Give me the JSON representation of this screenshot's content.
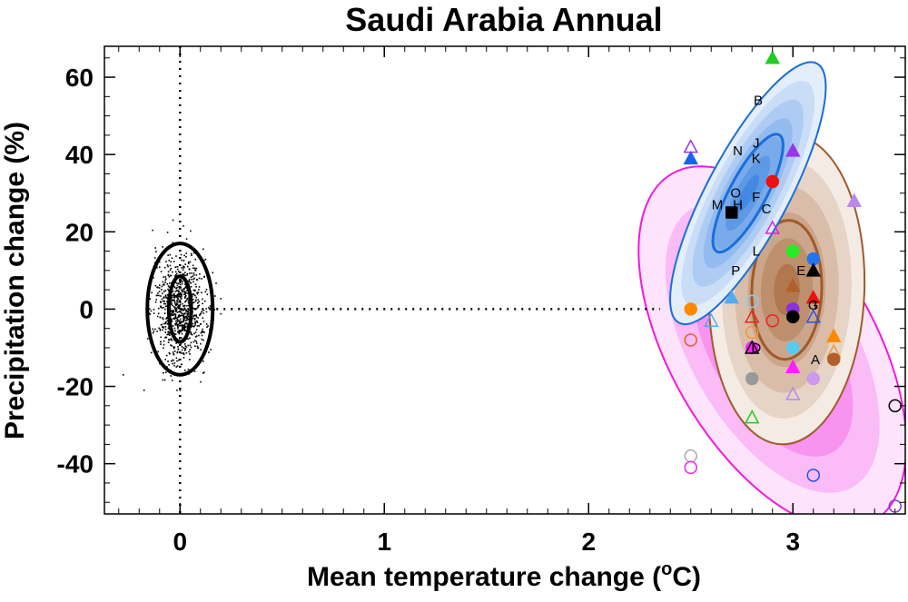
{
  "chart_data": {
    "type": "scatter",
    "title": "Saudi Arabia Annual",
    "xlabel": "Mean temperature change (",
    "xlabel_sup": "o",
    "xlabel_suffix": "C)",
    "ylabel": "Precipitation change (%)",
    "xlim": [
      -0.37,
      3.55
    ],
    "ylim": [
      -53,
      68
    ],
    "x_ticks": [
      0,
      1,
      2,
      3
    ],
    "y_ticks": [
      -40,
      -20,
      0,
      20,
      40,
      60
    ],
    "grid": false,
    "reference_lines": {
      "x": 0,
      "y": 0,
      "style": "dotted"
    },
    "natural_variability": {
      "center": [
        0.0,
        0.0
      ],
      "contours": [
        {
          "rx": 0.055,
          "ry": 8.5
        },
        {
          "rx": 0.16,
          "ry": 17
        }
      ],
      "scatter_extent": {
        "x": [
          -0.32,
          0.2
        ],
        "y": [
          -21,
          23
        ]
      },
      "scatter_count": 900,
      "color": "#000000"
    },
    "distributions": [
      {
        "name": "pink",
        "center": [
          2.9,
          -10
        ],
        "rx": 0.5,
        "ry": 52,
        "angle_deg": -30,
        "color": "#f019e0",
        "levels": 5
      },
      {
        "name": "brown",
        "center": [
          2.97,
          5
        ],
        "rx": 0.38,
        "ry": 40,
        "angle_deg": 2,
        "color": "#a05a28",
        "levels": 6
      },
      {
        "name": "blue",
        "center": [
          2.78,
          30
        ],
        "rx": 0.2,
        "ry": 38,
        "angle_deg": 28,
        "color": "#1a6edc",
        "levels": 7
      }
    ],
    "markers": [
      {
        "x": 2.9,
        "y": 65,
        "shape": "triangle",
        "filled": true,
        "color": "#22cc22"
      },
      {
        "x": 3.0,
        "y": 41,
        "shape": "triangle",
        "filled": true,
        "color": "#9933ee"
      },
      {
        "x": 2.9,
        "y": 33,
        "shape": "circle",
        "filled": true,
        "color": "#ee1111"
      },
      {
        "x": 2.5,
        "y": 39,
        "shape": "triangle",
        "filled": true,
        "color": "#1166ee"
      },
      {
        "x": 2.5,
        "y": 42,
        "shape": "triangle",
        "filled": false,
        "color": "#9933ee"
      },
      {
        "x": 3.3,
        "y": 28,
        "shape": "triangle",
        "filled": true,
        "color": "#bb88ee"
      },
      {
        "x": 2.7,
        "y": 25,
        "shape": "square",
        "filled": true,
        "color": "#000000"
      },
      {
        "x": 2.9,
        "y": 21,
        "shape": "triangle",
        "filled": false,
        "color": "#dd22dd"
      },
      {
        "x": 3.0,
        "y": 15,
        "shape": "circle",
        "filled": true,
        "color": "#22ee22"
      },
      {
        "x": 3.1,
        "y": 13,
        "shape": "circle",
        "filled": true,
        "color": "#2277ee"
      },
      {
        "x": 3.1,
        "y": 10,
        "shape": "triangle",
        "filled": true,
        "color": "#000000"
      },
      {
        "x": 3.0,
        "y": 6,
        "shape": "triangle",
        "filled": true,
        "color": "#b0602c"
      },
      {
        "x": 3.1,
        "y": 3,
        "shape": "triangle",
        "filled": true,
        "color": "#ee1111"
      },
      {
        "x": 2.7,
        "y": 3,
        "shape": "triangle",
        "filled": true,
        "color": "#55aaee"
      },
      {
        "x": 2.8,
        "y": 2,
        "shape": "circle",
        "filled": false,
        "color": "#88ccee"
      },
      {
        "x": 2.5,
        "y": 0,
        "shape": "circle",
        "filled": true,
        "color": "#ff8800"
      },
      {
        "x": 3.0,
        "y": 0,
        "shape": "circle",
        "filled": true,
        "color": "#8833dd"
      },
      {
        "x": 3.0,
        "y": -2,
        "shape": "circle",
        "filled": true,
        "color": "#000000"
      },
      {
        "x": 3.1,
        "y": -2,
        "shape": "triangle",
        "filled": false,
        "color": "#2255ee"
      },
      {
        "x": 2.8,
        "y": -2,
        "shape": "triangle",
        "filled": false,
        "color": "#ee2222"
      },
      {
        "x": 2.9,
        "y": -3,
        "shape": "circle",
        "filled": false,
        "color": "#ee2222"
      },
      {
        "x": 2.6,
        "y": -3,
        "shape": "triangle",
        "filled": false,
        "color": "#55aaee"
      },
      {
        "x": 2.8,
        "y": -6,
        "shape": "circle",
        "filled": false,
        "color": "#ee9933"
      },
      {
        "x": 2.5,
        "y": -8,
        "shape": "circle",
        "filled": false,
        "color": "#e06020"
      },
      {
        "x": 3.2,
        "y": -7,
        "shape": "triangle",
        "filled": true,
        "color": "#ff8800"
      },
      {
        "x": 2.8,
        "y": -10,
        "shape": "circle",
        "filled": true,
        "color": "#ff22ff"
      },
      {
        "x": 2.8,
        "y": -10,
        "shape": "triangle",
        "filled": false,
        "color": "#000000"
      },
      {
        "x": 3.0,
        "y": -10,
        "shape": "circle",
        "filled": true,
        "color": "#55ccee"
      },
      {
        "x": 3.2,
        "y": -11,
        "shape": "triangle",
        "filled": false,
        "color": "#ee9933"
      },
      {
        "x": 3.2,
        "y": -13,
        "shape": "circle",
        "filled": true,
        "color": "#b0602c"
      },
      {
        "x": 3.0,
        "y": -15,
        "shape": "triangle",
        "filled": true,
        "color": "#ff22ff"
      },
      {
        "x": 2.8,
        "y": -18,
        "shape": "circle",
        "filled": true,
        "color": "#999999"
      },
      {
        "x": 3.1,
        "y": -18,
        "shape": "circle",
        "filled": true,
        "color": "#cc99ee"
      },
      {
        "x": 3.0,
        "y": -22,
        "shape": "triangle",
        "filled": false,
        "color": "#bb88ee"
      },
      {
        "x": 3.5,
        "y": -25,
        "shape": "circle",
        "filled": false,
        "color": "#000000"
      },
      {
        "x": 2.8,
        "y": -28,
        "shape": "triangle",
        "filled": false,
        "color": "#22cc22"
      },
      {
        "x": 2.5,
        "y": -38,
        "shape": "circle",
        "filled": false,
        "color": "#aaaaaa"
      },
      {
        "x": 2.5,
        "y": -41,
        "shape": "circle",
        "filled": false,
        "color": "#ee22ee"
      },
      {
        "x": 3.1,
        "y": -43,
        "shape": "circle",
        "filled": false,
        "color": "#2255ee"
      },
      {
        "x": 3.5,
        "y": -51,
        "shape": "circle",
        "filled": false,
        "color": "#8833dd"
      }
    ],
    "letters": [
      {
        "label": "B",
        "x": 2.83,
        "y": 54
      },
      {
        "label": "J",
        "x": 2.82,
        "y": 43
      },
      {
        "label": "N",
        "x": 2.73,
        "y": 41
      },
      {
        "label": "K",
        "x": 2.82,
        "y": 39
      },
      {
        "label": "O",
        "x": 2.72,
        "y": 30
      },
      {
        "label": "F",
        "x": 2.82,
        "y": 29
      },
      {
        "label": "M",
        "x": 2.63,
        "y": 27
      },
      {
        "label": "H",
        "x": 2.73,
        "y": 27
      },
      {
        "label": "C",
        "x": 2.87,
        "y": 26
      },
      {
        "label": "L",
        "x": 2.82,
        "y": 15
      },
      {
        "label": "P",
        "x": 2.72,
        "y": 10
      },
      {
        "label": "I",
        "x": 3.11,
        "y": 1
      },
      {
        "label": "G",
        "x": 3.1,
        "y": 1
      },
      {
        "label": "D",
        "x": 2.82,
        "y": -10
      },
      {
        "label": "E",
        "x": 3.04,
        "y": 10
      },
      {
        "label": "A",
        "x": 3.11,
        "y": -13
      }
    ]
  }
}
